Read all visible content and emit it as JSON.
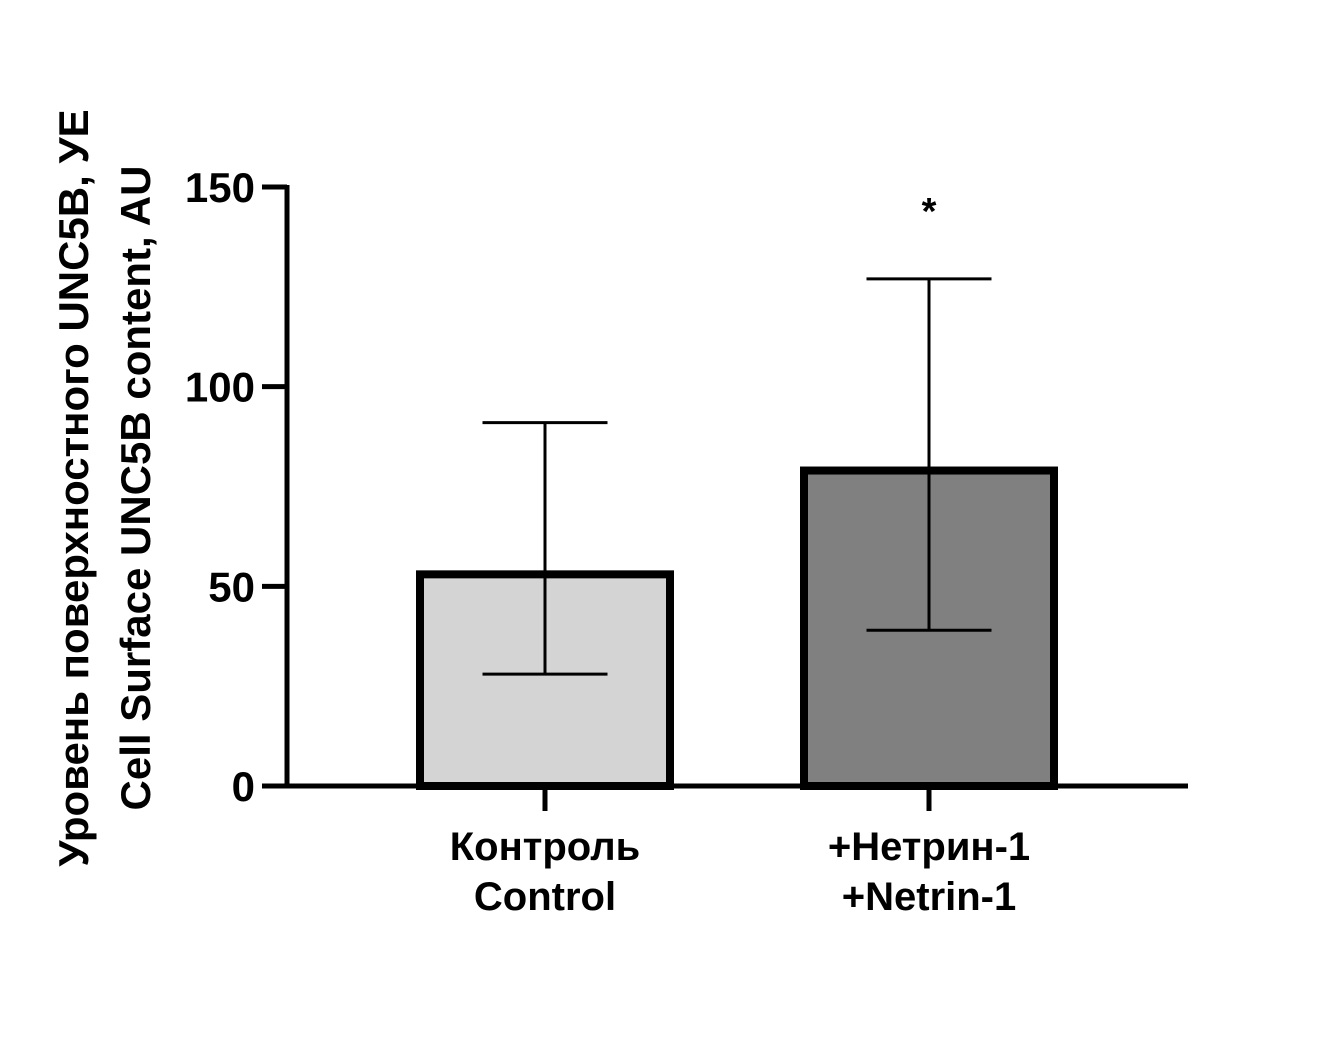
{
  "chart_data": {
    "type": "bar",
    "ylabel_lines": [
      "Уровень поверхностного UNC5B, УЕ",
      "Cell Surface UNC5B content, AU"
    ],
    "ylim": [
      0,
      150
    ],
    "yticks": [
      0,
      50,
      100,
      150
    ],
    "categories": [
      {
        "lines": [
          "Контроль",
          "Control"
        ]
      },
      {
        "lines": [
          "+Нетрин-1",
          "+Netrin-1"
        ]
      }
    ],
    "values": [
      53,
      79
    ],
    "error_upper": [
      91,
      127
    ],
    "error_lower": [
      28,
      39
    ],
    "significance": [
      "",
      "*"
    ],
    "bar_colors": [
      "#d4d4d4",
      "#808080"
    ],
    "grid": false
  }
}
